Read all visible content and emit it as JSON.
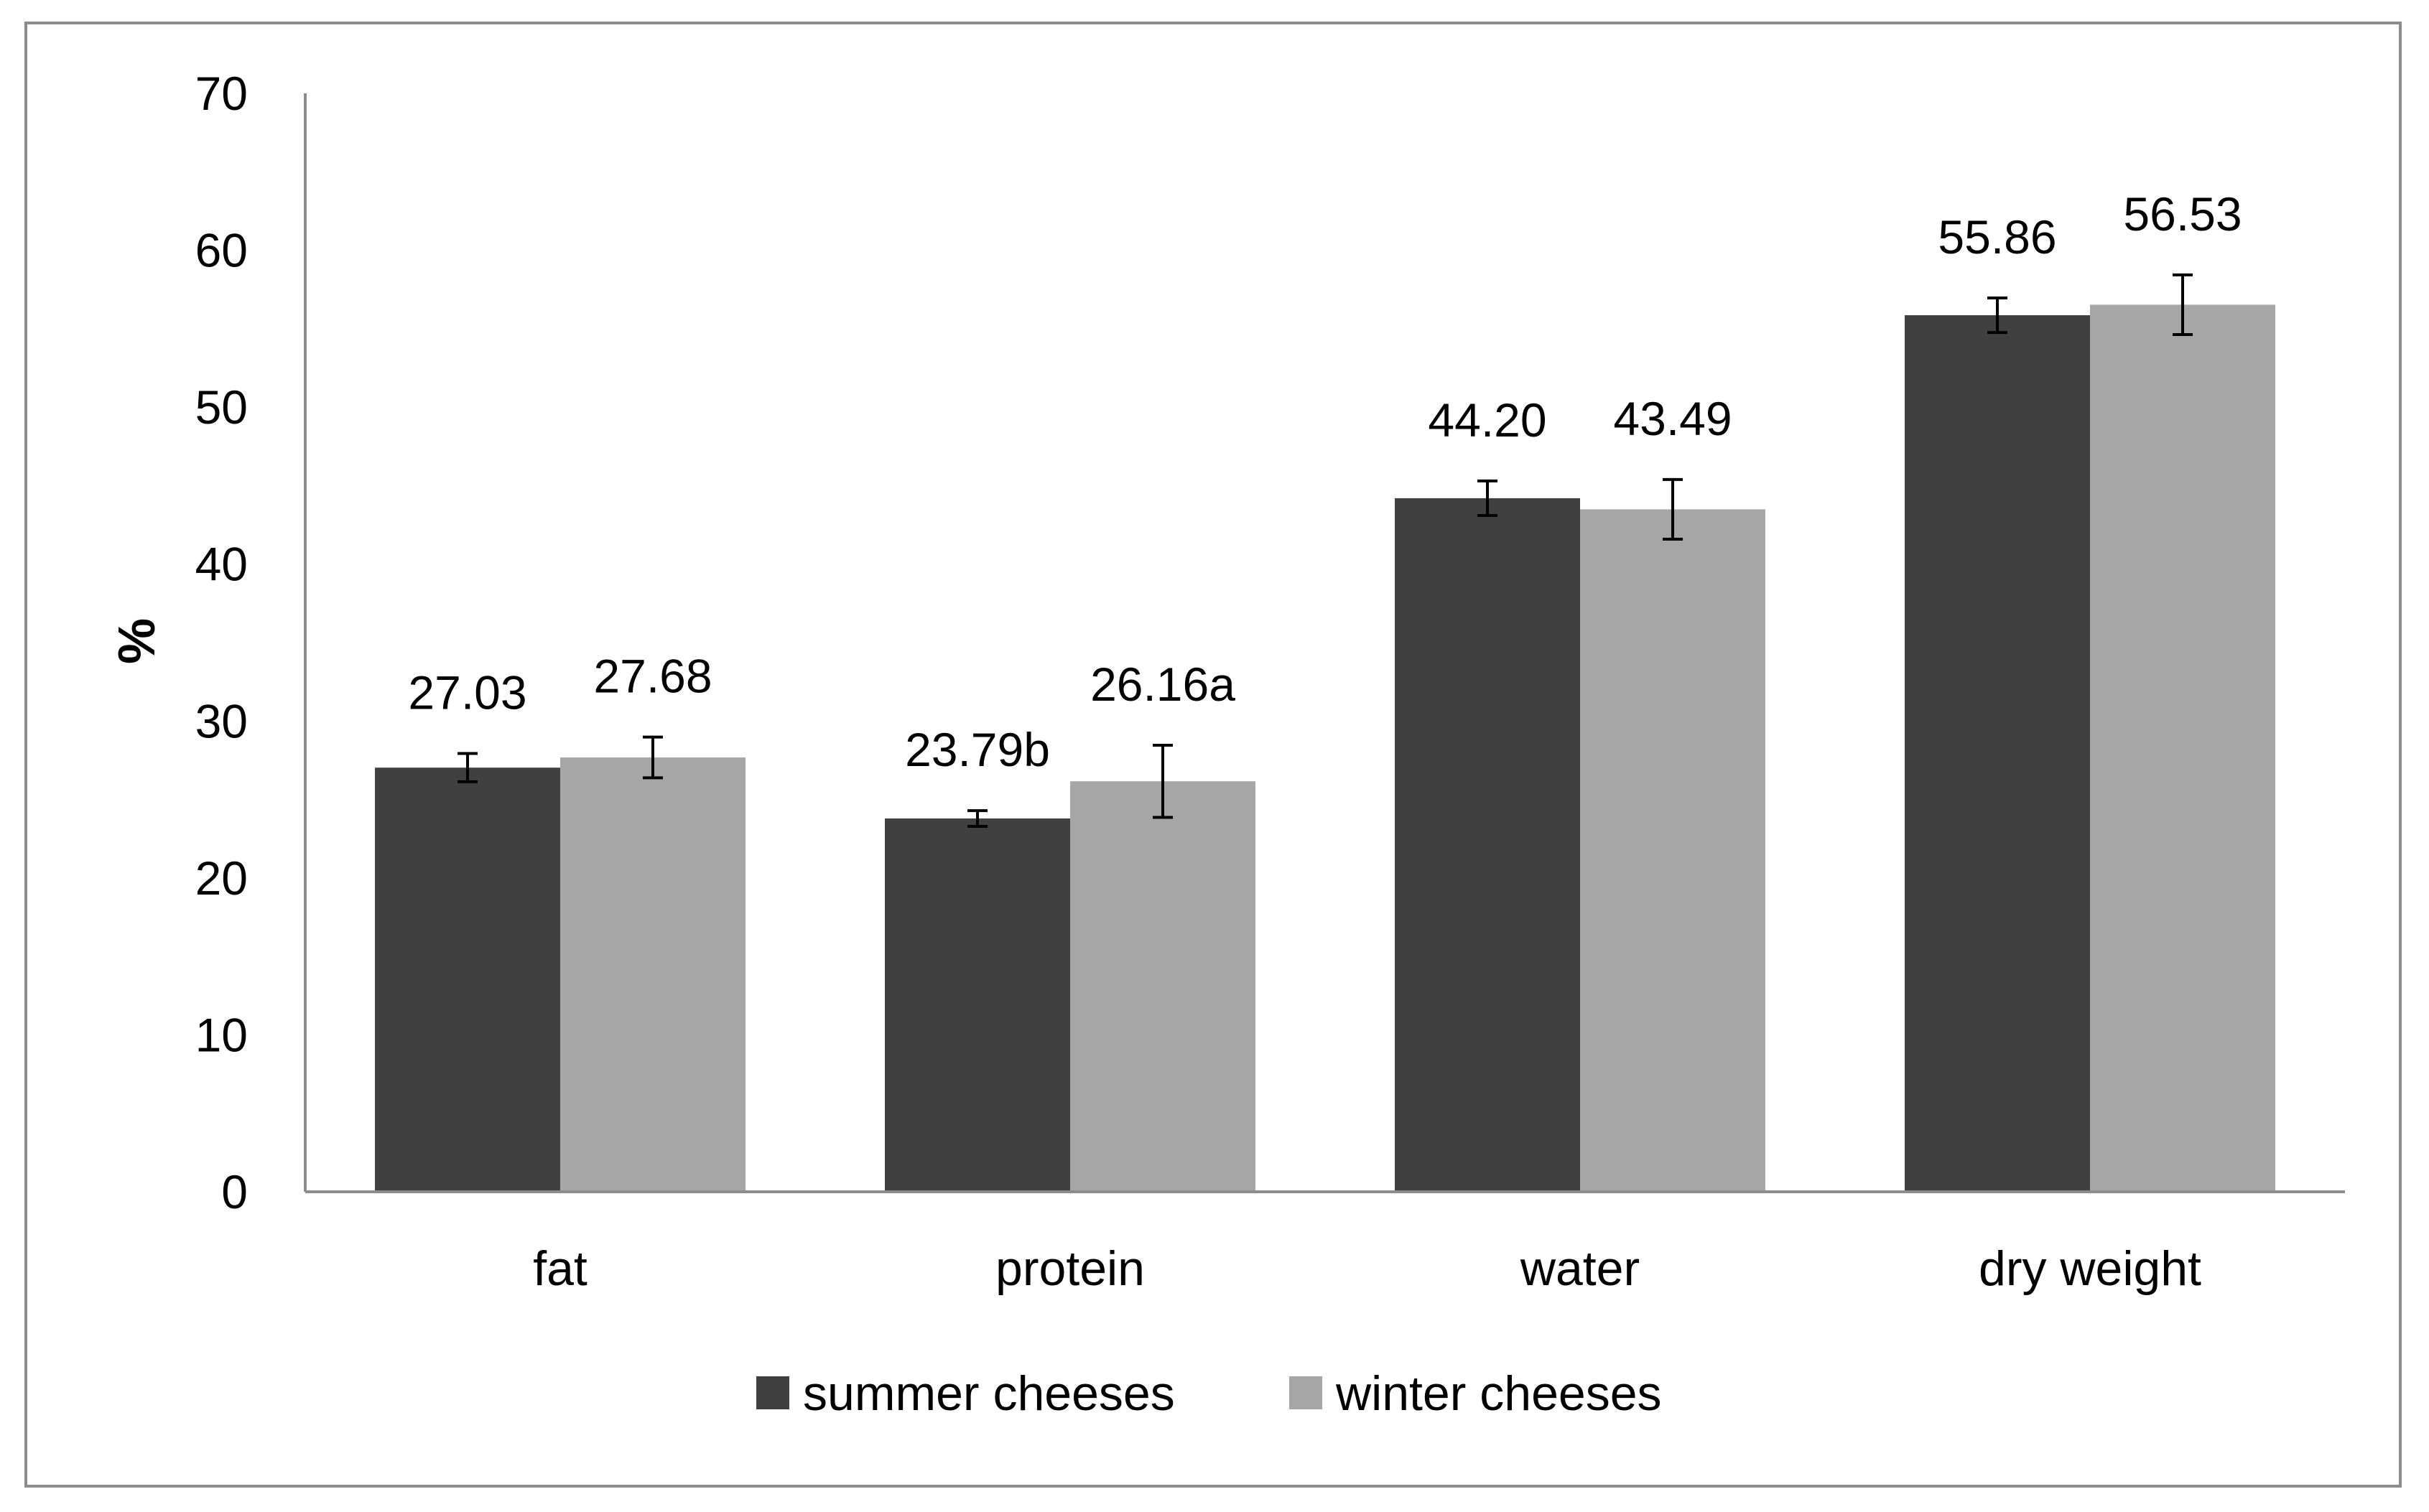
{
  "chart_data": {
    "type": "bar",
    "title": "",
    "xlabel": "",
    "ylabel": "%",
    "ylim": [
      0,
      70
    ],
    "yticks": [
      0,
      10,
      20,
      30,
      40,
      50,
      60,
      70
    ],
    "categories": [
      "fat",
      "protein",
      "water",
      "dry weight"
    ],
    "series": [
      {
        "name": "summer cheeses",
        "color": "#404040",
        "values": [
          27.03,
          23.79,
          44.2,
          55.86
        ],
        "errors": [
          0.9,
          0.5,
          1.1,
          1.1
        ],
        "labels": [
          "27.03",
          "23.79b",
          "44.20",
          "55.86"
        ]
      },
      {
        "name": "winter cheeses",
        "color": "#a6a6a6",
        "values": [
          27.68,
          26.16,
          43.49,
          56.53
        ],
        "errors": [
          1.3,
          2.3,
          1.9,
          1.9
        ],
        "labels": [
          "27.68",
          "26.16a",
          "43.49",
          "56.53"
        ]
      }
    ],
    "legend_position": "bottom-center",
    "grid": false
  }
}
